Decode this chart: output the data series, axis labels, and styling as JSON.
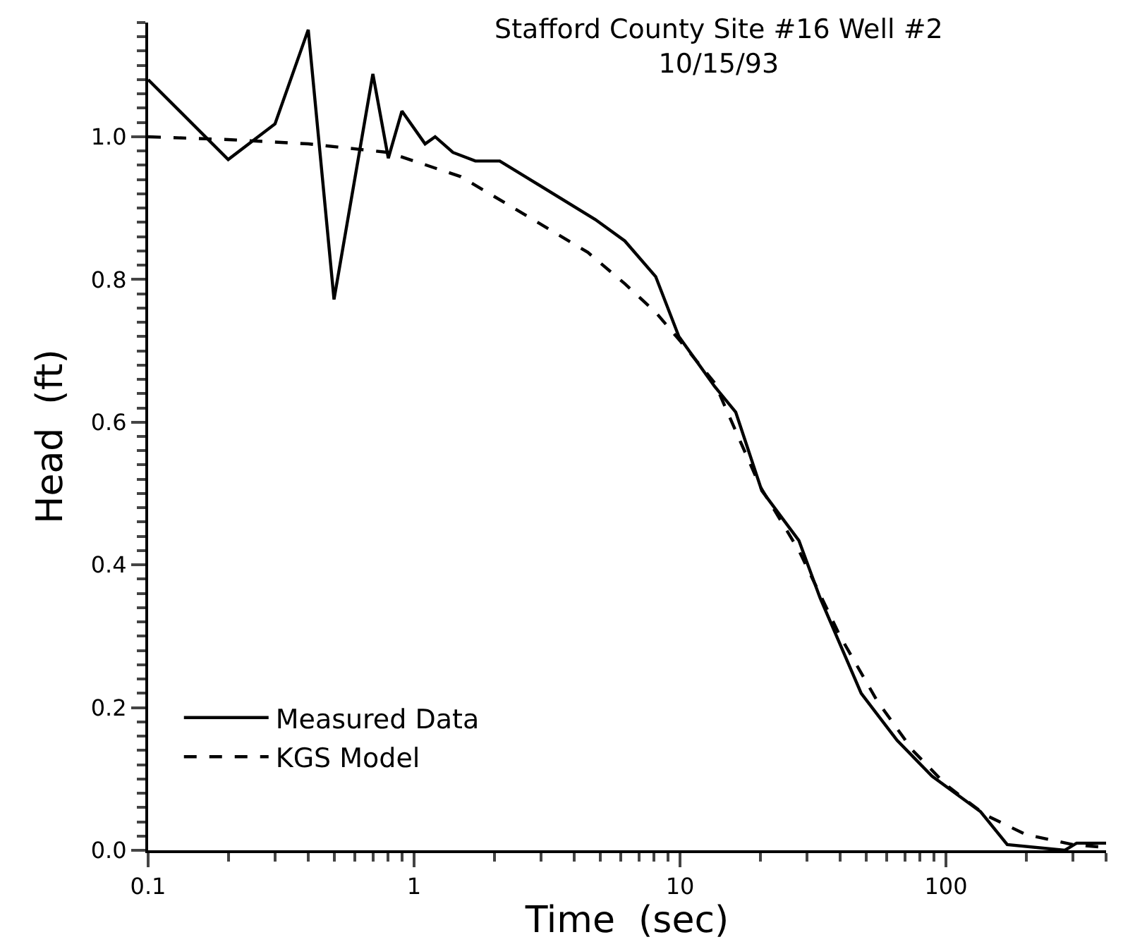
{
  "chart_data": {
    "type": "line",
    "title": "Stafford County Site #16 Well #2\n10/15/93",
    "xlabel": "Time  (sec)",
    "ylabel": "Head  (ft)",
    "log": "x",
    "xlim": [
      0.1,
      400
    ],
    "xticks": [
      0.1,
      1,
      10,
      100
    ],
    "ylim": [
      0,
      1.16
    ],
    "yticks": [
      {
        "value": 0,
        "label": "0.0"
      },
      0.2,
      0.4,
      0.6,
      0.8,
      {
        "value": 1.0,
        "label": "1.0"
      }
    ],
    "legend": "bottom left",
    "marker": "none",
    "series": [
      {
        "name": "Measured Data",
        "color": "#000000",
        "line_style": "solid",
        "x": [
          0.1,
          0.2,
          0.3,
          0.4,
          0.5,
          0.7,
          0.8,
          0.9,
          1.1,
          1.2,
          1.4,
          1.7,
          2.1,
          4.8,
          6.2,
          8.1,
          9.9,
          13.5,
          16.2,
          20.3,
          28,
          33.6,
          48,
          65.5,
          88.6,
          135,
          170,
          280,
          310,
          400
        ],
        "values": [
          1.08,
          0.968,
          1.018,
          1.15,
          0.772,
          1.088,
          0.97,
          1.036,
          0.99,
          1.0,
          0.978,
          0.966,
          0.966,
          0.884,
          0.854,
          0.804,
          0.72,
          0.65,
          0.614,
          0.504,
          0.434,
          0.354,
          0.22,
          0.154,
          0.104,
          0.054,
          0.008,
          0.0,
          0.01,
          0.01
        ]
      },
      {
        "name": "KGS Model",
        "color": "#000000",
        "line_style": "dashed",
        "x": [
          0.1,
          0.2,
          0.4,
          0.8,
          1.5,
          2.8,
          4.5,
          6.2,
          8.1,
          10,
          13.5,
          20,
          28,
          40,
          55,
          75,
          100,
          140,
          200,
          300,
          400
        ],
        "values": [
          1.0,
          0.996,
          0.99,
          0.978,
          0.944,
          0.884,
          0.838,
          0.794,
          0.754,
          0.714,
          0.655,
          0.51,
          0.42,
          0.3,
          0.21,
          0.14,
          0.092,
          0.05,
          0.022,
          0.008,
          0.004
        ]
      }
    ]
  }
}
